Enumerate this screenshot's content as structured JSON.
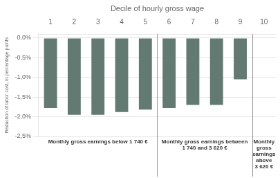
{
  "chart_data": {
    "type": "bar",
    "xlabel": "Decile of hourly gross wage",
    "ylabel": "Reduction of labor cost, in percentage points",
    "categories": [
      1,
      2,
      3,
      4,
      5,
      6,
      7,
      8,
      9,
      10
    ],
    "values": [
      -1.78,
      -1.95,
      -1.95,
      -1.88,
      -1.82,
      -1.78,
      -1.7,
      -1.7,
      -1.05,
      0.0
    ],
    "color": "#627a72",
    "ylim": [
      -2.5,
      0.1
    ],
    "yticks": [
      {
        "value": 0.0,
        "label": "0,0%"
      },
      {
        "value": -0.5,
        "label": "-0,5%"
      },
      {
        "value": -1.0,
        "label": "-1,0%"
      },
      {
        "value": -1.5,
        "label": "-1,5%"
      },
      {
        "value": -2.0,
        "label": "-2,0%"
      },
      {
        "value": -2.5,
        "label": "-2,5%"
      }
    ],
    "grid": true,
    "annotations": [
      {
        "text": "Monthly gross earnings below 1 740 €",
        "categories": [
          1,
          5
        ]
      },
      {
        "text": "Monthly gross earnings between\n1 740 and 3 620 €",
        "categories": [
          6,
          9
        ]
      },
      {
        "text": "Monthly\ngross\nearnings\nabove\n3 620 €",
        "categories": [
          10,
          10
        ]
      }
    ]
  }
}
